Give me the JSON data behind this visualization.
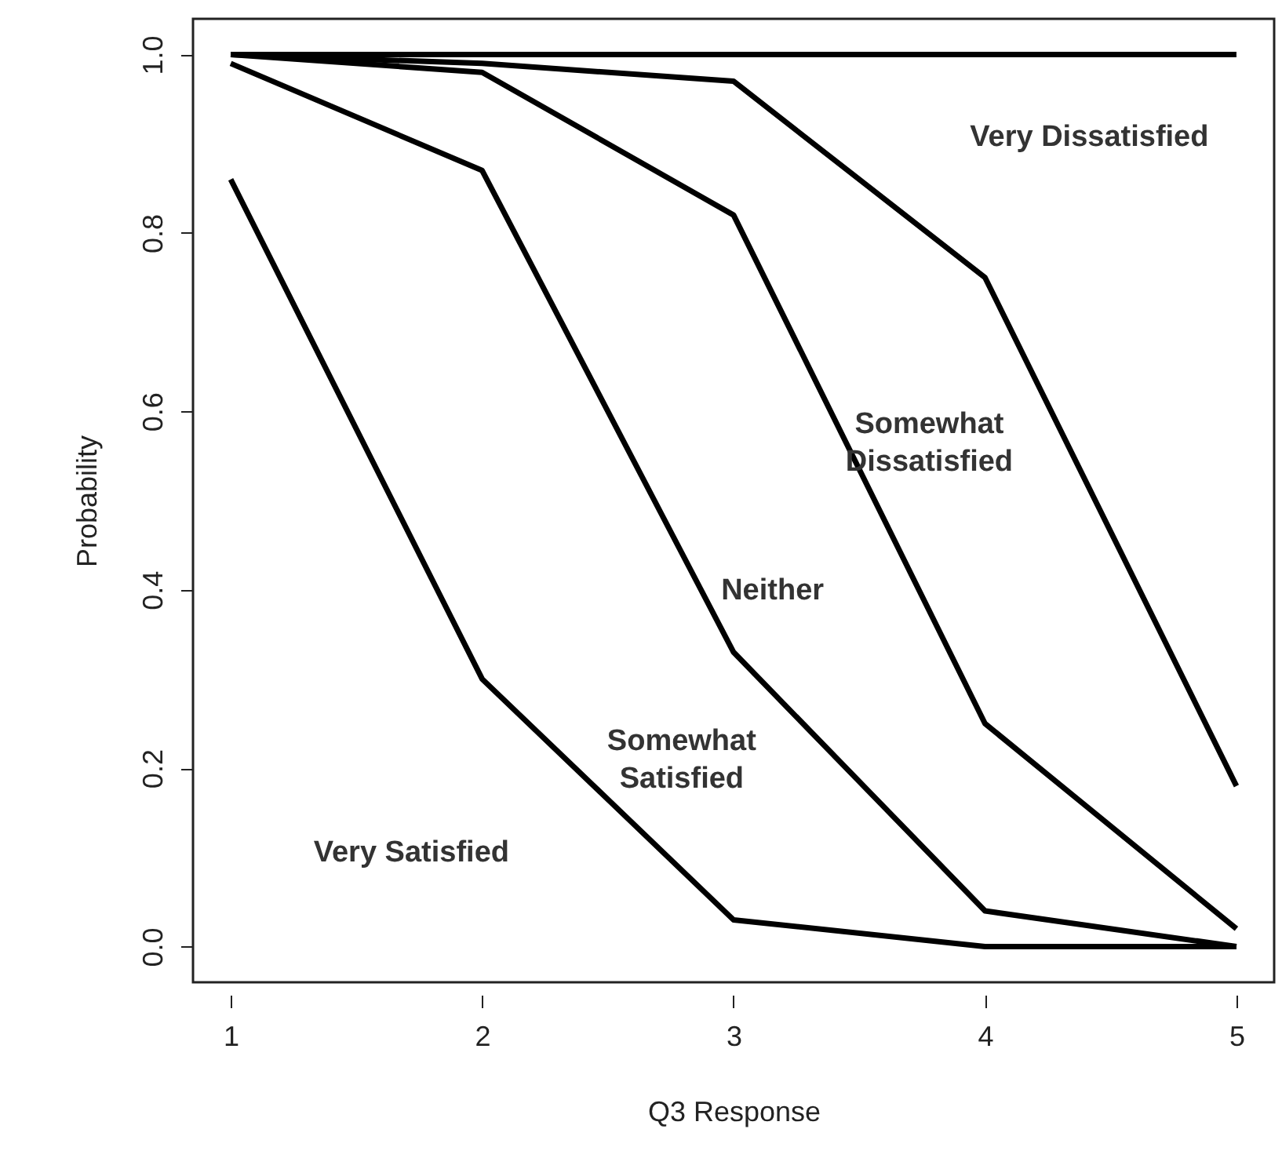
{
  "chart_data": {
    "type": "line",
    "xlabel": "Q3 Response",
    "ylabel": "Probability",
    "x": [
      1,
      2,
      3,
      4,
      5
    ],
    "series": [
      {
        "color": "#000000",
        "values": [
          0.86,
          0.3,
          0.03,
          0.0,
          0.0
        ]
      },
      {
        "color": "#000000",
        "values": [
          0.99,
          0.87,
          0.33,
          0.04,
          0.0
        ]
      },
      {
        "color": "#000000",
        "values": [
          1.0,
          0.98,
          0.82,
          0.25,
          0.02
        ]
      },
      {
        "color": "#000000",
        "values": [
          1.0,
          0.99,
          0.97,
          0.75,
          0.18
        ]
      },
      {
        "color": "#000000",
        "values": [
          1.0,
          1.0,
          1.0,
          1.0,
          1.0
        ]
      }
    ],
    "xlim": [
      0.85,
      5.15
    ],
    "ylim": [
      -0.04,
      1.04
    ],
    "xticks": [
      1,
      2,
      3,
      4,
      5
    ],
    "yticks": [
      {
        "value": 0,
        "label": "0.0"
      },
      {
        "value": 0.2,
        "label": "0.2"
      },
      {
        "value": 0.4,
        "label": "0.4"
      },
      {
        "value": 0.6,
        "label": "0.6"
      },
      {
        "value": 0.8,
        "label": "0.8"
      },
      {
        "value": 1,
        "label": "1.0"
      }
    ],
    "grid": false,
    "marker": "none",
    "line_style": "solid",
    "annotations": [
      "Very Dissatisfied",
      "Somewhat\nDissatisfied",
      "Neither",
      "Somewhat\nSatisfied",
      "Very Satisfied"
    ]
  }
}
